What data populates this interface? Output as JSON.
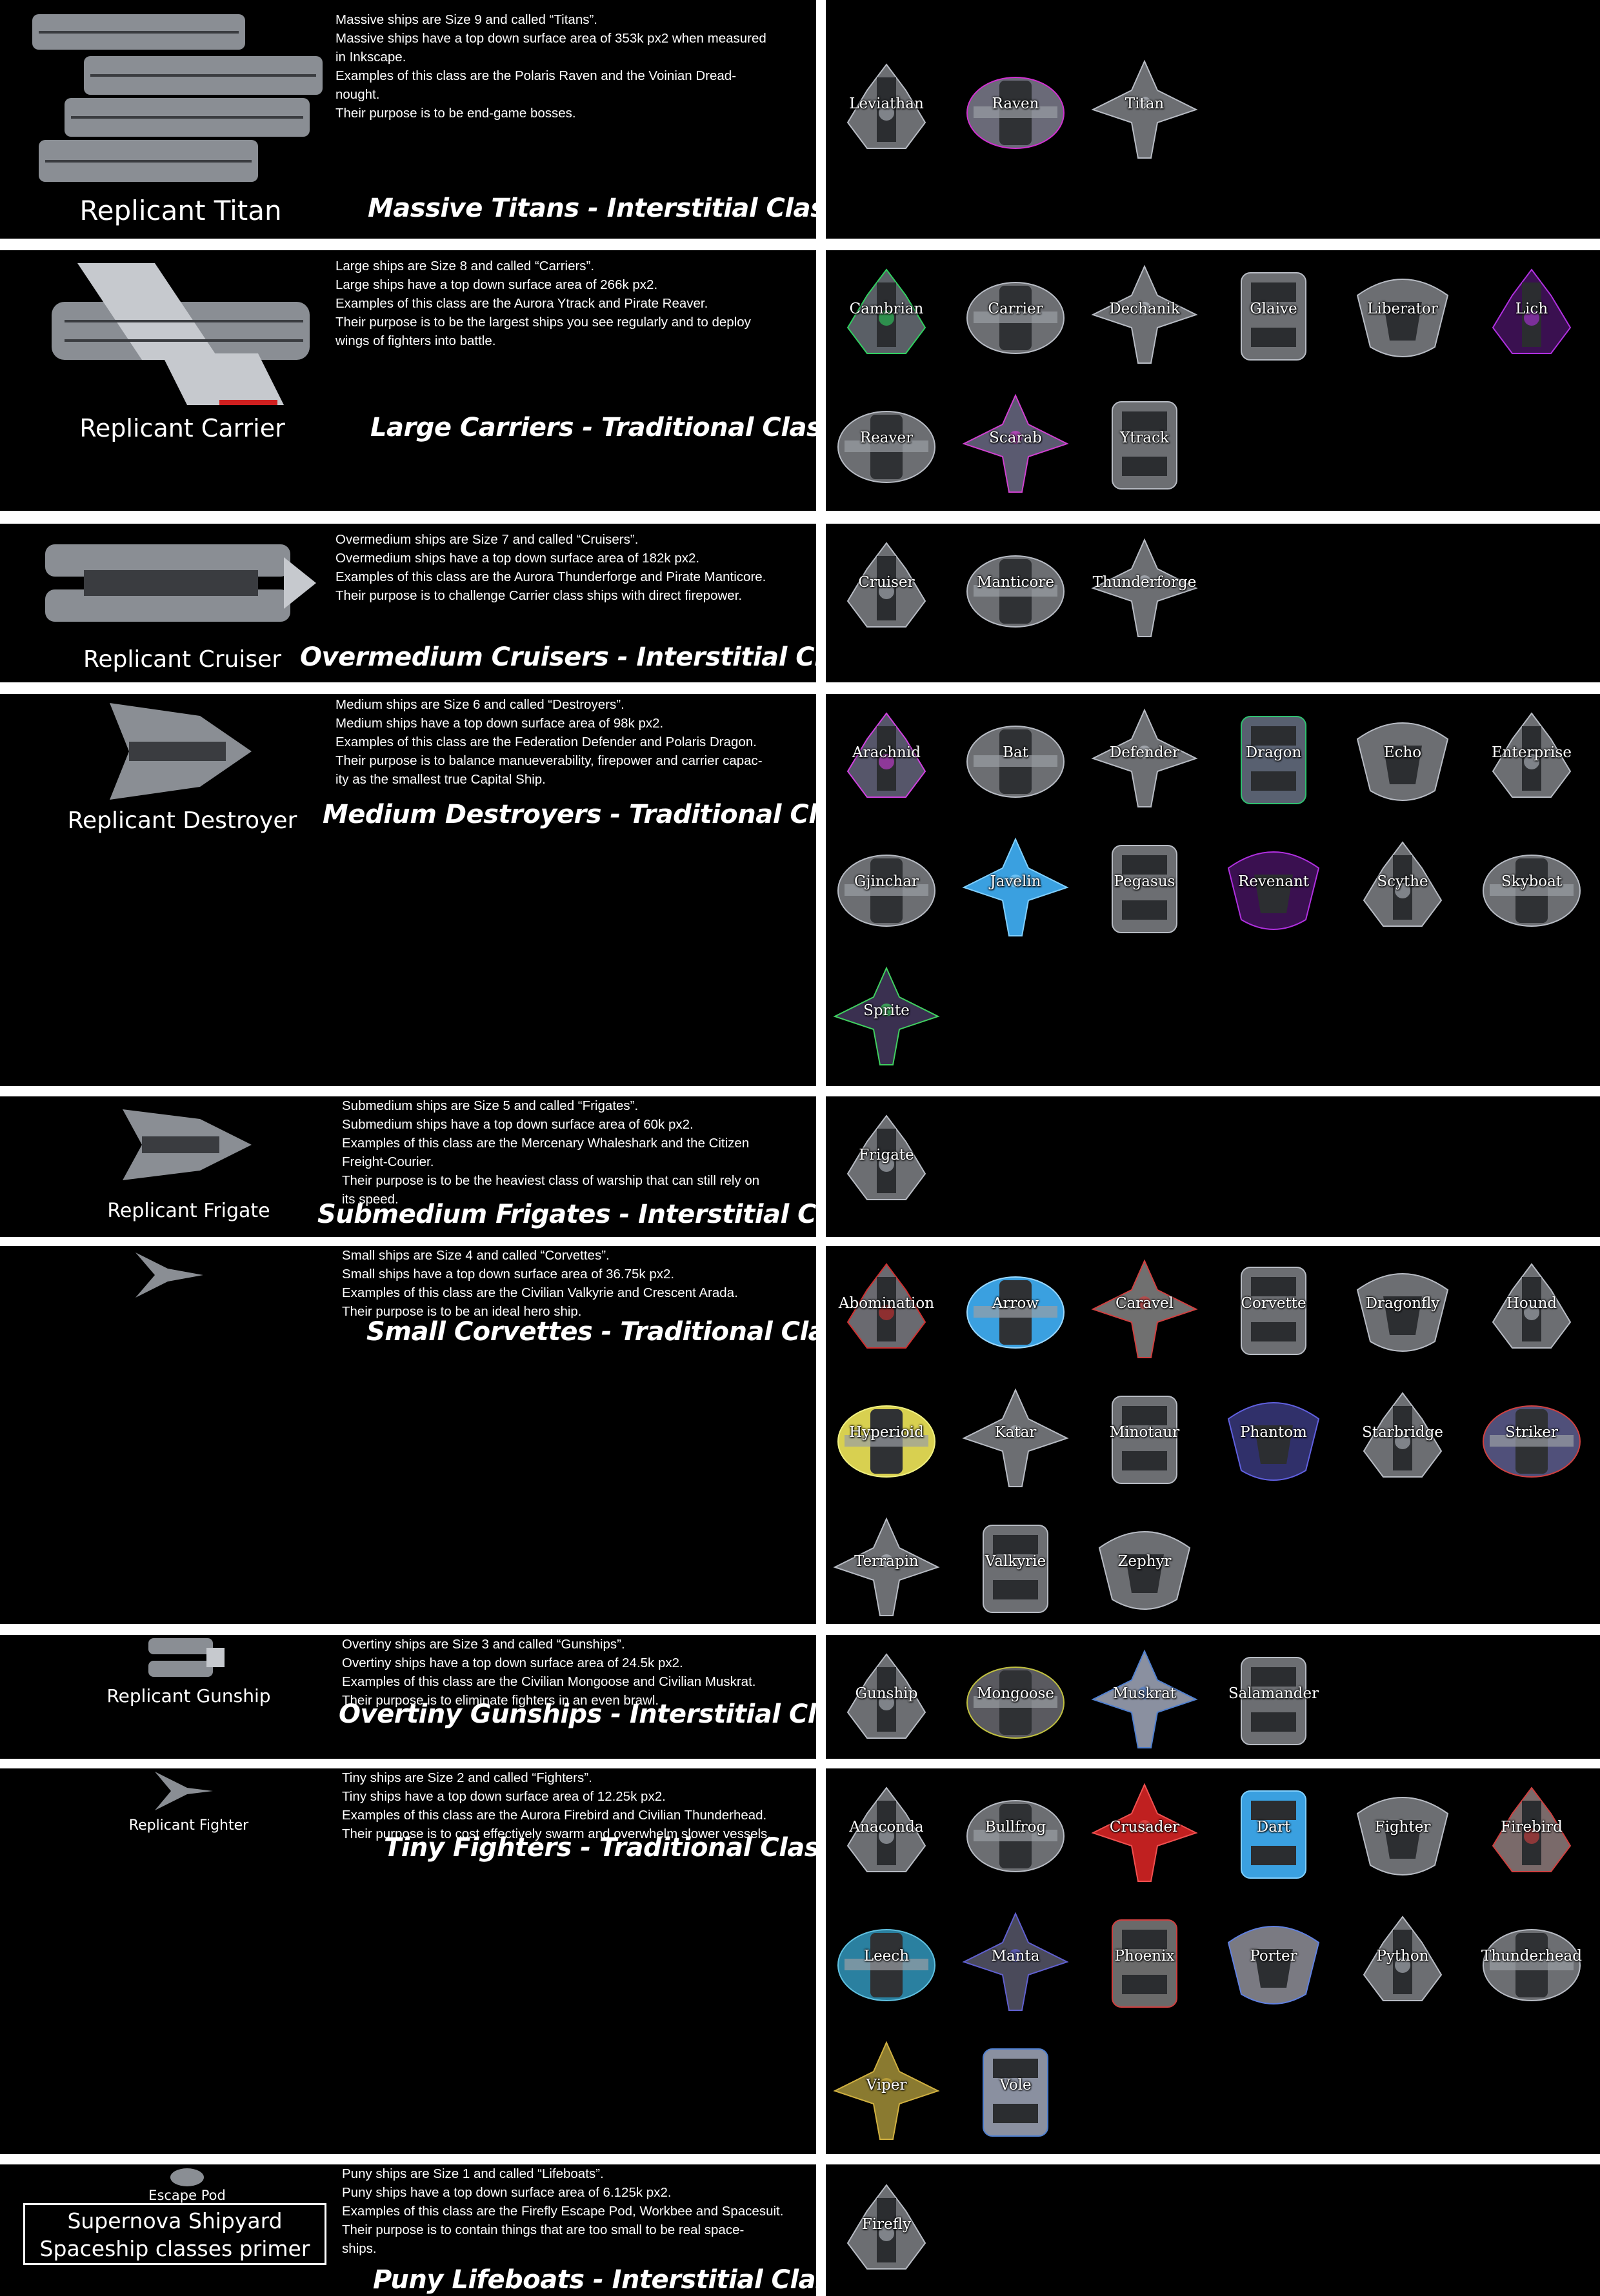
{
  "title": {
    "line1": "Supernova Shipyard",
    "line2": "Spaceship classes primer"
  },
  "escape_pod_label": "Escape Pod",
  "palette": {
    "background": "#000000",
    "divider": "#ffffff",
    "text": "#ffffff"
  },
  "sections": [
    {
      "heading": "Massive Titans - Interstitial Class",
      "replicant": "Replicant Titan",
      "description": "Massive ships are Size 9 and called “Titans”.\nMassive ships have a top down surface area of 353k px2 when measured\nin Inkscape.\nExamples of this class are the Polaris Raven and the Voinian Dread-\nnought.\nTheir purpose is to be end-game bosses.",
      "ships": [
        "Leviathan",
        "Raven",
        "Titan"
      ]
    },
    {
      "heading": "Large Carriers - Traditional Class",
      "replicant": "Replicant Carrier",
      "description": "Large ships are Size 8 and called “Carriers”.\nLarge ships have a top down surface area of 266k px2.\nExamples of this class are the Aurora Ytrack and Pirate Reaver.\nTheir purpose is to be the largest ships you see regularly and to deploy\nwings of fighters into battle.",
      "ships": [
        "Cambrian",
        "Carrier",
        "Dechanik",
        "Glaive",
        "Liberator",
        "Lich",
        "Reaver",
        "Scarab",
        "Ytrack"
      ]
    },
    {
      "heading": "Overmedium Cruisers - Interstitial Class",
      "replicant": "Replicant Cruiser",
      "description": "Overmedium ships are Size 7 and called “Cruisers”.\nOvermedium ships have a top down surface area of 182k px2.\nExamples of this class are the Aurora Thunderforge and Pirate Manticore.\nTheir purpose is to challenge Carrier class ships with direct firepower.",
      "ships": [
        "Cruiser",
        "Manticore",
        "Thunderforge"
      ]
    },
    {
      "heading": "Medium Destroyers - Traditional Class",
      "replicant": "Replicant Destroyer",
      "description": "Medium ships are Size 6 and called “Destroyers”.\nMedium ships have a top down surface area of 98k px2.\nExamples of this class are the Federation Defender and Polaris Dragon.\nTheir purpose is to balance manueverability, firepower and carrier capac-\nity as the smallest true Capital Ship.",
      "ships": [
        "Arachnid",
        "Bat",
        "Defender",
        "Dragon",
        "Echo",
        "Enterprise",
        "Gjinchar",
        "Javelin",
        "Pegasus",
        "Revenant",
        "Scythe",
        "Skyboat",
        "Sprite"
      ]
    },
    {
      "heading": "Submedium Frigates - Interstitial Class",
      "replicant": "Replicant Frigate",
      "description": "Submedium ships are Size 5 and called “Frigates”.\nSubmedium ships have a top down surface area of 60k px2.\nExamples of this class are the Mercenary Whaleshark and the Citizen\nFreight-Courier.\nTheir purpose is to be the heaviest class of warship that can still rely on\nits speed.",
      "ships": [
        "Frigate"
      ]
    },
    {
      "heading": "Small Corvettes - Traditional Class",
      "replicant": "",
      "description": "Small ships are Size 4 and called “Corvettes”.\nSmall ships have a top down surface area of 36.75k px2.\nExamples of this class are the Civilian Valkyrie and Crescent Arada.\nTheir purpose is to be an ideal hero ship.",
      "ships": [
        "Abomination",
        "Arrow",
        "Caravel",
        "Corvette",
        "Dragonfly",
        "Hound",
        "Hyperioid",
        "Katar",
        "Minotaur",
        "Phantom",
        "Starbridge",
        "Striker",
        "Terrapin",
        "Valkyrie",
        "Zephyr"
      ]
    },
    {
      "heading": "Overtiny Gunships - Interstitial Class",
      "replicant": "Replicant Gunship",
      "description": "Overtiny ships are Size 3 and called “Gunships”.\nOvertiny ships have a top down surface area of 24.5k px2.\nExamples of this class are the Civilian Mongoose and Civilian Muskrat.\nTheir purpose is to eliminate fighters in an even brawl.",
      "ships": [
        "Gunship",
        "Mongoose",
        "Muskrat",
        "Salamander"
      ]
    },
    {
      "heading": "Tiny Fighters - Traditional Class",
      "replicant": "Replicant Fighter",
      "description": "Tiny ships are Size 2 and called “Fighters”.\nTiny ships have a top down surface area of 12.25k px2.\nExamples of this class are the Aurora Firebird and Civilian Thunderhead.\nTheir purpose is to cost effectively swarm and overwhelm slower vessels.",
      "ships": [
        "Anaconda",
        "Bullfrog",
        "Crusader",
        "Dart",
        "Fighter",
        "Firebird",
        "Leech",
        "Manta",
        "Phoenix",
        "Porter",
        "Python",
        "Thunderhead",
        "Viper",
        "Vole"
      ]
    },
    {
      "heading": "Puny Lifeboats - Interstitial Class",
      "replicant": "",
      "description": "Puny ships are Size 1 and called “Lifeboats”.\nPuny ships have a top down surface area of 6.125k px2.\nExamples of this class are the Firefly Escape Pod, Workbee and Spacesuit.\nTheir purpose is to contain things that are too small to be real space-\nships.",
      "ships": [
        "Firefly"
      ]
    }
  ]
}
